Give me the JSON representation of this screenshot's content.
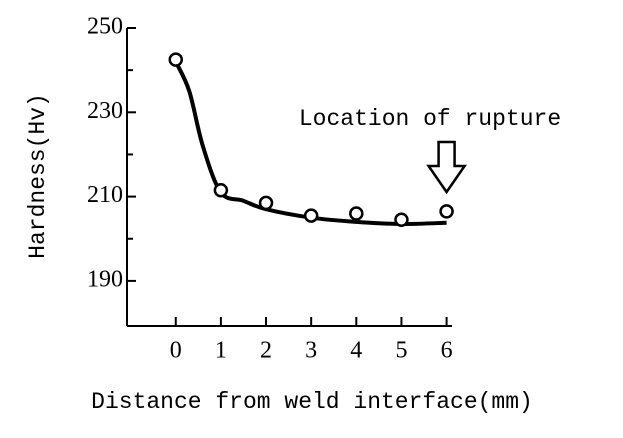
{
  "chart_data": {
    "type": "scatter",
    "xlabel": "Distance from weld interface(mm)",
    "ylabel": "Hardness(Hv)",
    "annotation": "Location of rupture",
    "x": [
      0,
      1,
      2,
      3,
      4,
      5,
      6
    ],
    "values": [
      242.5,
      211.5,
      208.5,
      205.5,
      206,
      204.5,
      206.5
    ],
    "fit_x": [
      0,
      0.3,
      0.6,
      1,
      1.5,
      2,
      3,
      4,
      5,
      6
    ],
    "fit_values": [
      242,
      235,
      222,
      211,
      209,
      207,
      205,
      204,
      203.5,
      203.8
    ],
    "color": "#000000",
    "xlim": [
      -1.08,
      6.12
    ],
    "ylim": [
      179.3,
      250
    ],
    "xticks": [
      0,
      1,
      2,
      3,
      4,
      5,
      6
    ],
    "yticks": [
      190,
      210,
      230,
      250
    ],
    "yticks_minor": [
      200,
      220,
      240
    ],
    "annotation_x": 6
  }
}
